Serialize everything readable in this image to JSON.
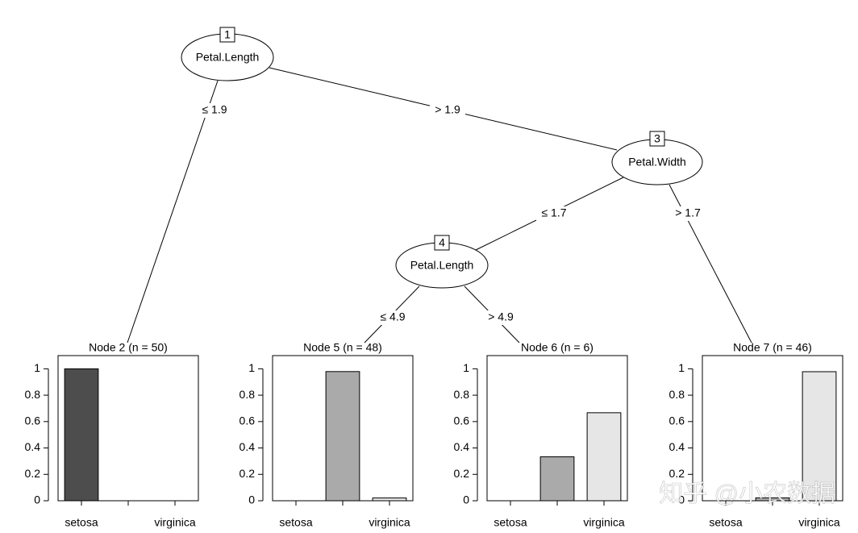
{
  "tree": {
    "nodes": [
      {
        "id": "1",
        "label": "Petal.Length"
      },
      {
        "id": "3",
        "label": "Petal.Width"
      },
      {
        "id": "4",
        "label": "Petal.Length"
      }
    ],
    "edges": [
      "≤ 1.9",
      "> 1.9",
      "≤ 1.7",
      "> 1.7",
      "≤ 4.9",
      "> 4.9"
    ]
  },
  "watermark": "知乎 @小农数据",
  "chart_data": [
    {
      "type": "bar",
      "title": "Node 2 (n = 50)",
      "categories": [
        "setosa",
        null,
        "virginica"
      ],
      "values": [
        1,
        0,
        0
      ],
      "colors": [
        "#4d4d4d",
        "#aaaaaa",
        "#e6e6e6"
      ],
      "ylim": [
        0,
        1.1
      ],
      "yticks": [
        0,
        0.2,
        0.4,
        0.6,
        0.8,
        1
      ]
    },
    {
      "type": "bar",
      "title": "Node 5 (n = 48)",
      "categories": [
        "setosa",
        null,
        "virginica"
      ],
      "values": [
        0,
        0.979,
        0.021
      ],
      "colors": [
        "#4d4d4d",
        "#aaaaaa",
        "#e6e6e6"
      ],
      "ylim": [
        0,
        1.1
      ],
      "yticks": [
        0,
        0.2,
        0.4,
        0.6,
        0.8,
        1
      ]
    },
    {
      "type": "bar",
      "title": "Node 6 (n = 6)",
      "categories": [
        "setosa",
        null,
        "virginica"
      ],
      "values": [
        0,
        0.333,
        0.667
      ],
      "colors": [
        "#4d4d4d",
        "#aaaaaa",
        "#e6e6e6"
      ],
      "ylim": [
        0,
        1.1
      ],
      "yticks": [
        0,
        0.2,
        0.4,
        0.6,
        0.8,
        1
      ]
    },
    {
      "type": "bar",
      "title": "Node 7 (n = 46)",
      "categories": [
        "setosa",
        null,
        "virginica"
      ],
      "values": [
        0,
        0.022,
        0.978
      ],
      "colors": [
        "#4d4d4d",
        "#aaaaaa",
        "#e6e6e6"
      ],
      "ylim": [
        0,
        1.1
      ],
      "yticks": [
        0,
        0.2,
        0.4,
        0.6,
        0.8,
        1
      ]
    }
  ]
}
